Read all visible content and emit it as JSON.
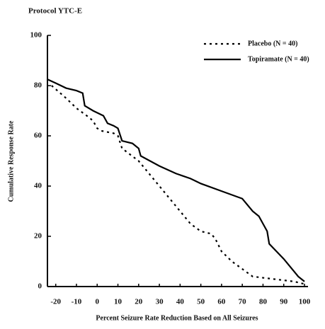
{
  "chart_data": {
    "type": "line",
    "title": "Protocol YTC-E",
    "xlabel": "Percent Seizure Rate Reduction Based on All Seizures",
    "ylabel": "Cumulative Response Rate",
    "xlim": [
      -24,
      100
    ],
    "xticks": [
      -20,
      -10,
      0,
      10,
      20,
      30,
      40,
      50,
      60,
      70,
      80,
      90,
      100
    ],
    "ylim": [
      0,
      100
    ],
    "yticks": [
      0,
      20,
      40,
      60,
      80,
      100
    ],
    "legend": "upper right",
    "series": [
      {
        "name": "Placebo (N = 40)",
        "color": "#000000",
        "dash": "dotted",
        "x": [
          -22,
          -15,
          -10,
          -5,
          -2,
          0,
          2,
          8,
          10,
          12,
          20,
          25,
          30,
          35,
          40,
          45,
          50,
          55,
          57,
          60,
          65,
          70,
          75,
          85,
          95,
          100
        ],
        "values": [
          80,
          75,
          71,
          68,
          66,
          63,
          62,
          61,
          60,
          55,
          50,
          45,
          40,
          35,
          30,
          25,
          22,
          21,
          19,
          14,
          10,
          7,
          4,
          3,
          2,
          1
        ]
      },
      {
        "name": "Topiramate (N = 40)",
        "color": "#000000",
        "dash": "solid",
        "x": [
          -24,
          -20,
          -15,
          -10,
          -7,
          -6,
          -2,
          3,
          5,
          8,
          10,
          12,
          17,
          20,
          21,
          30,
          38,
          45,
          50,
          60,
          70,
          75,
          78,
          80,
          82,
          83,
          90,
          95,
          97,
          100
        ],
        "values": [
          82.5,
          81,
          79,
          78,
          77,
          72,
          70,
          68,
          65,
          64,
          63,
          58,
          57,
          55,
          52,
          48,
          45,
          43,
          41,
          38,
          35,
          30,
          28,
          25,
          22,
          17,
          11,
          6,
          4,
          2
        ]
      }
    ]
  }
}
